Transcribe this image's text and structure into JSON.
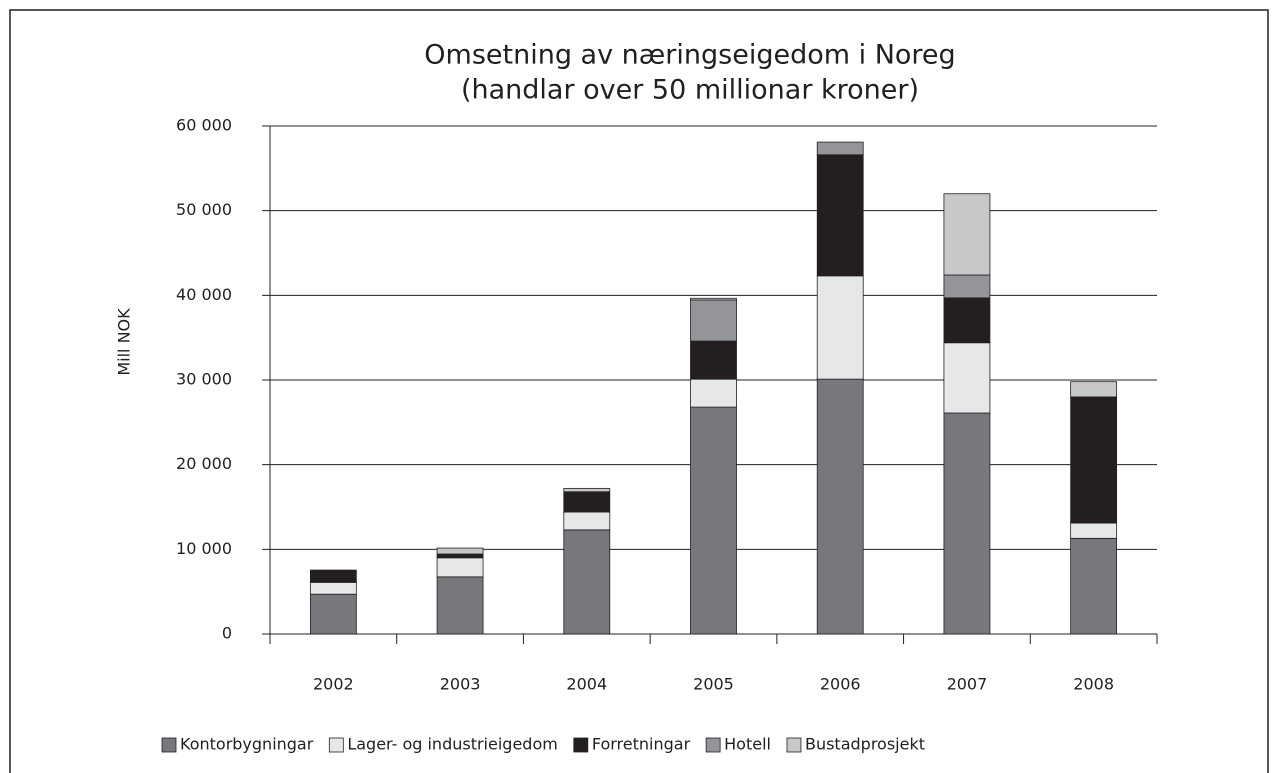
{
  "chart_data": {
    "type": "stacked_bar",
    "title": "Omsetning av næringseigedom i Noreg",
    "subtitle": "(handlar over 50 millionar kroner)",
    "y_label": "Mill NOK",
    "categories": [
      "2002",
      "2003",
      "2004",
      "2005",
      "2006",
      "2007",
      "2008"
    ],
    "series": [
      {
        "name": "Kontorbygningar",
        "color": "#77787b",
        "values": [
          4700,
          6750,
          12300,
          26800,
          30100,
          26100,
          11300
        ]
      },
      {
        "name": "Lager- og industrieigedom",
        "color": "#e6e7e8",
        "values": [
          1400,
          2250,
          2100,
          3300,
          12200,
          8300,
          1800
        ]
      },
      {
        "name": "Forretningar",
        "color": "#231f20",
        "values": [
          1450,
          450,
          2400,
          4500,
          14300,
          5300,
          14900
        ]
      },
      {
        "name": "Hotell",
        "color": "#939598",
        "values": [
          0,
          0,
          0,
          4850,
          1500,
          2700,
          0
        ]
      },
      {
        "name": "Bustadprosjekt",
        "color": "#c7c8ca",
        "values": [
          0,
          700,
          400,
          200,
          0,
          9600,
          1800
        ]
      }
    ],
    "ylim": [
      0,
      60000
    ],
    "yticks": [
      {
        "value": 0,
        "label": "0"
      },
      {
        "value": 10000,
        "label": "10 000"
      },
      {
        "value": 20000,
        "label": "20 000"
      },
      {
        "value": 30000,
        "label": "30 000"
      },
      {
        "value": 40000,
        "label": "40 000"
      },
      {
        "value": 50000,
        "label": "50 000"
      },
      {
        "value": 60000,
        "label": "60 000"
      }
    ],
    "grid": true,
    "legend": "bottom"
  }
}
